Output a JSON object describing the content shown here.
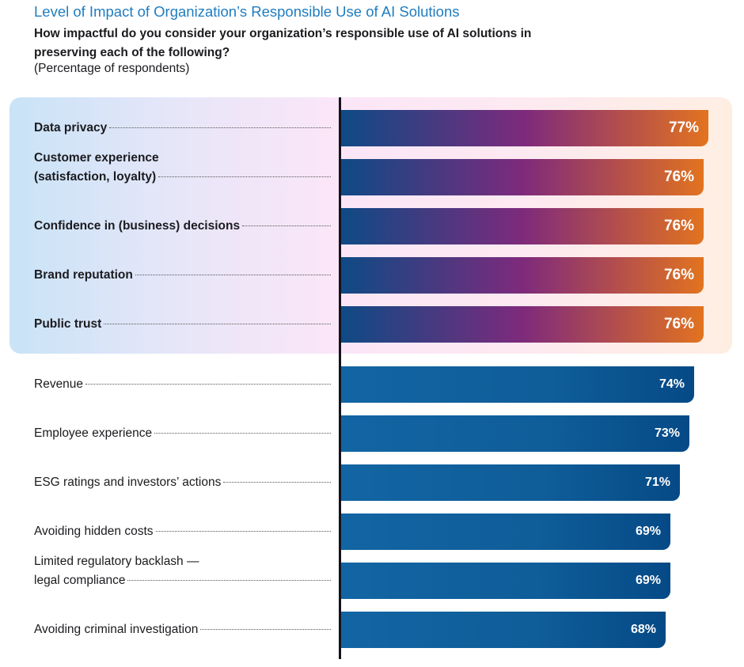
{
  "header": {
    "title": "Level of Impact of Organization’s Responsible Use of AI Solutions",
    "subtitle": "How impactful do you consider your organization’s responsible use of AI solutions in preserving each of the following?",
    "note": "(Percentage of respondents)"
  },
  "colors": {
    "title": "#1f7dc0",
    "highlight_gradient": [
      "#0e4a85",
      "#7e2a7c",
      "#e2731f"
    ],
    "normal_gradient": [
      "#1265a3",
      "#054a86"
    ]
  },
  "chart_data": {
    "type": "bar",
    "orientation": "horizontal",
    "title": "Level of Impact of Organization’s Responsible Use of AI Solutions",
    "subtitle": "How impactful do you consider your organization’s responsible use of AI solutions in preserving each of the following?",
    "ylabel": "",
    "xlabel": "(Percentage of respondents)",
    "unit": "%",
    "xlim": [
      0,
      100
    ],
    "grid": false,
    "categories": [
      {
        "lines": [
          "Data privacy"
        ],
        "value": 77,
        "label": "77%",
        "highlight": true
      },
      {
        "lines": [
          "Customer experience",
          "(satisfaction, loyalty)"
        ],
        "value": 76,
        "label": "76%",
        "highlight": true
      },
      {
        "lines": [
          "Confidence in (business) decisions"
        ],
        "value": 76,
        "label": "76%",
        "highlight": true
      },
      {
        "lines": [
          "Brand reputation"
        ],
        "value": 76,
        "label": "76%",
        "highlight": true
      },
      {
        "lines": [
          "Public trust"
        ],
        "value": 76,
        "label": "76%",
        "highlight": true
      },
      {
        "lines": [
          "Revenue"
        ],
        "value": 74,
        "label": "74%",
        "highlight": false
      },
      {
        "lines": [
          "Employee experience"
        ],
        "value": 73,
        "label": "73%",
        "highlight": false
      },
      {
        "lines": [
          "ESG ratings and investors’ actions"
        ],
        "value": 71,
        "label": "71%",
        "highlight": false
      },
      {
        "lines": [
          "Avoiding hidden costs"
        ],
        "value": 69,
        "label": "69%",
        "highlight": false
      },
      {
        "lines": [
          "Limited regulatory backlash —",
          "legal compliance"
        ],
        "value": 69,
        "label": "69%",
        "highlight": false
      },
      {
        "lines": [
          "Avoiding criminal investigation"
        ],
        "value": 68,
        "label": "68%",
        "highlight": false
      }
    ]
  }
}
